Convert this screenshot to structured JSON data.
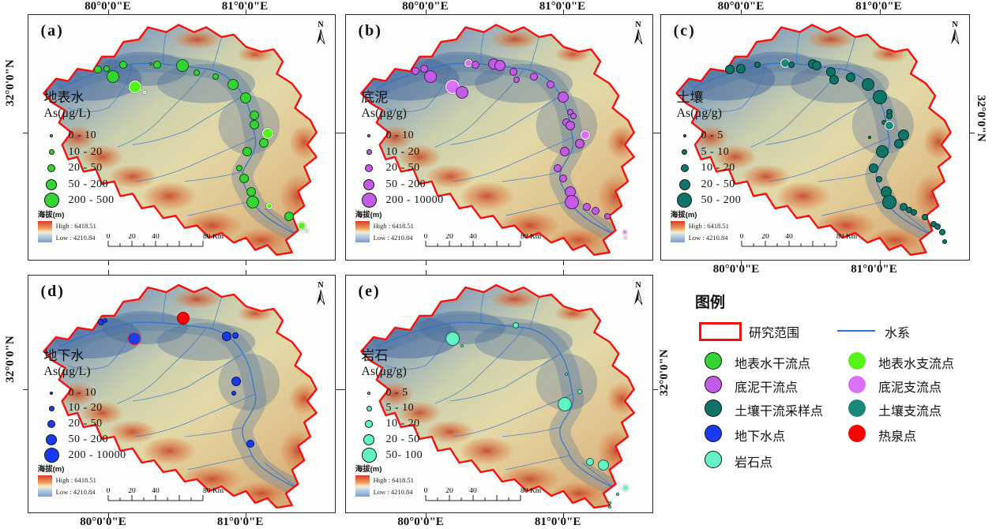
{
  "figure": {
    "north": "N",
    "elevation": {
      "label": "海拔(m)",
      "high": "High : 6418.51",
      "low": "Low : 4210.84"
    },
    "scalebar": {
      "ticks": [
        "0",
        "20",
        "40",
        "80 Km"
      ]
    },
    "colors": {
      "study_area_outline": "#f50f0f",
      "river": "#2f74d0",
      "surface_water_main": "#35d435",
      "surface_water_trib": "#55f318",
      "sediment_main": "#c45be6",
      "sediment_trib": "#da70f8",
      "soil_main": "#0f7569",
      "soil_trib": "#1a877b",
      "groundwater": "#1a3af0",
      "rock": "#63f2c5",
      "hot_spring": "#ff0000"
    },
    "panels": [
      {
        "id": "a",
        "letter": "(a)",
        "title": "地表水",
        "unit": "As(μg/L)",
        "classes": [
          "0 - 10",
          "10 - 20",
          "20 - 50",
          "50 - 200",
          "200 - 500"
        ],
        "color": "#35d435",
        "trib_color": "#55f318",
        "axis": {
          "top": [
            "80°0'0\"E",
            "81°0'0\"E"
          ],
          "left": "32°0'0\"N"
        },
        "points": [
          [
            22.6,
            22.4,
            5,
            0
          ],
          [
            25.6,
            21.8,
            4,
            0
          ],
          [
            31.0,
            20.2,
            5,
            0
          ],
          [
            40.0,
            19.9,
            2,
            0
          ],
          [
            42.1,
            20.2,
            5,
            0
          ],
          [
            50.3,
            20.5,
            8,
            0
          ],
          [
            54.9,
            23.4,
            4,
            0
          ],
          [
            27.7,
            25.3,
            8,
            0
          ],
          [
            34.9,
            29.5,
            8,
            1
          ],
          [
            37.9,
            31.7,
            2,
            1
          ],
          [
            61.0,
            25.0,
            4,
            0
          ],
          [
            66.7,
            28.5,
            7,
            0
          ],
          [
            70.8,
            34.0,
            7,
            0
          ],
          [
            73.6,
            41.0,
            6,
            0
          ],
          [
            73.8,
            44.9,
            6,
            0
          ],
          [
            78.2,
            48.4,
            7,
            1
          ],
          [
            76.7,
            52.2,
            6,
            0
          ],
          [
            71.3,
            55.8,
            6,
            0
          ],
          [
            68.7,
            62.5,
            4,
            0
          ],
          [
            70.3,
            66.7,
            6,
            0
          ],
          [
            72.8,
            72.4,
            6,
            0
          ],
          [
            73.3,
            76.6,
            8,
            0
          ],
          [
            78.7,
            78.2,
            4,
            1
          ],
          [
            85.1,
            82.4,
            6,
            0
          ],
          [
            89.2,
            86.2,
            5,
            1
          ],
          [
            90.8,
            88.1,
            2,
            1
          ]
        ]
      },
      {
        "id": "b",
        "letter": "(b)",
        "title": "底泥",
        "unit": "As(μg/g)",
        "classes": [
          "0 - 10",
          "10 - 20",
          "20 - 50",
          "50 - 200",
          "200 - 10000"
        ],
        "color": "#c45be6",
        "trib_color": "#da70f8",
        "axis": {
          "top": [
            "80°0'0\"E",
            "81°0'0\"E"
          ]
        },
        "points": [
          [
            22.6,
            22.8,
            5,
            0
          ],
          [
            25.6,
            21.8,
            5,
            0
          ],
          [
            27.7,
            25.3,
            8,
            0
          ],
          [
            34.9,
            29.5,
            9,
            1
          ],
          [
            37.9,
            31.7,
            8,
            0
          ],
          [
            40.0,
            19.6,
            5,
            1
          ],
          [
            42.3,
            20.2,
            5,
            0
          ],
          [
            48.2,
            19.9,
            7,
            0
          ],
          [
            50.3,
            20.5,
            7,
            0
          ],
          [
            54.6,
            23.1,
            5,
            0
          ],
          [
            55.6,
            26.3,
            4,
            0
          ],
          [
            61.3,
            25.3,
            5,
            0
          ],
          [
            66.7,
            28.5,
            5,
            0
          ],
          [
            70.8,
            33.7,
            7,
            0
          ],
          [
            73.3,
            39.7,
            4,
            0
          ],
          [
            74.1,
            41.3,
            4,
            0
          ],
          [
            71.8,
            43.9,
            5,
            0
          ],
          [
            73.3,
            45.2,
            6,
            0
          ],
          [
            78.2,
            49.0,
            6,
            1
          ],
          [
            76.4,
            52.6,
            6,
            0
          ],
          [
            71.3,
            55.8,
            6,
            0
          ],
          [
            69.0,
            62.5,
            5,
            0
          ],
          [
            70.8,
            66.7,
            5,
            0
          ],
          [
            73.1,
            72.4,
            7,
            0
          ],
          [
            73.8,
            76.6,
            9,
            0
          ],
          [
            78.5,
            78.5,
            5,
            0
          ],
          [
            81.5,
            80.1,
            5,
            0
          ],
          [
            85.4,
            82.4,
            4,
            0
          ],
          [
            91.0,
            88.8,
            3,
            1
          ],
          [
            91.3,
            91.0,
            2,
            1
          ]
        ]
      },
      {
        "id": "c",
        "letter": "(c)",
        "title": "土壤",
        "unit": "As(μg/g)",
        "classes": [
          "0 - 5",
          "5 - 10",
          "10 - 20",
          "20 - 50",
          "50 - 200"
        ],
        "color": "#0f7569",
        "trib_color": "#1a877b",
        "axis": {
          "top": [
            "80°0'0\"E",
            "81°0'0\"E"
          ],
          "bottom": [
            "80°0'0\"E",
            "81°0'0\"E"
          ],
          "right": "32°0'0\"N"
        },
        "points": [
          [
            22.4,
            22.1,
            6,
            0
          ],
          [
            25.8,
            21.8,
            6,
            0
          ],
          [
            31.4,
            20.2,
            4,
            0
          ],
          [
            40.3,
            19.6,
            6,
            1
          ],
          [
            42.3,
            20.2,
            4,
            0
          ],
          [
            49.2,
            19.9,
            6,
            0
          ],
          [
            50.5,
            20.5,
            6,
            0
          ],
          [
            55.1,
            23.1,
            6,
            0
          ],
          [
            56.1,
            26.3,
            6,
            0
          ],
          [
            61.5,
            25.6,
            6,
            0
          ],
          [
            67.1,
            28.5,
            8,
            0
          ],
          [
            70.9,
            33.7,
            9,
            0
          ],
          [
            74.0,
            39.7,
            4,
            0
          ],
          [
            74.2,
            41.3,
            4,
            0
          ],
          [
            72.2,
            43.9,
            3,
            0
          ],
          [
            74.0,
            45.2,
            6,
            1
          ],
          [
            78.6,
            49.0,
            7,
            0
          ],
          [
            77.3,
            52.6,
            6,
            0
          ],
          [
            67.6,
            50.0,
            2,
            0
          ],
          [
            71.9,
            55.8,
            8,
            0
          ],
          [
            68.9,
            62.5,
            6,
            0
          ],
          [
            70.7,
            67.0,
            4,
            0
          ],
          [
            73.2,
            72.4,
            7,
            0
          ],
          [
            74.0,
            76.6,
            9,
            0
          ],
          [
            78.6,
            78.5,
            5,
            0
          ],
          [
            80.4,
            79.8,
            4,
            0
          ],
          [
            82.1,
            80.8,
            4,
            0
          ],
          [
            85.7,
            82.7,
            4,
            0
          ],
          [
            88.5,
            85.6,
            4,
            0
          ],
          [
            89.8,
            86.5,
            4,
            0
          ],
          [
            91.3,
            88.8,
            4,
            0
          ],
          [
            92.1,
            92.6,
            3,
            0
          ]
        ]
      },
      {
        "id": "d",
        "letter": "(d)",
        "title": "地下水",
        "unit": "As(μg/L)",
        "classes": [
          "0 - 10",
          "10 - 20",
          "20 - 50",
          "50 - 200",
          "200 - 10000"
        ],
        "color": "#1a3af0",
        "trib_color": "#1a3af0",
        "axis": {
          "bottom": [
            "80°0'0\"E",
            "81°0'0\"E"
          ],
          "left": "32°0'0\"N"
        },
        "points": [
          [
            23.8,
            19.5,
            4,
            0
          ],
          [
            24.9,
            19.0,
            3,
            0
          ],
          [
            50.5,
            17.9,
            8,
            2
          ],
          [
            34.6,
            26.5,
            8,
            3
          ],
          [
            64.6,
            25.8,
            6,
            0
          ],
          [
            67.4,
            25.2,
            4,
            0
          ],
          [
            67.9,
            44.7,
            6,
            0
          ],
          [
            66.9,
            49.7,
            3,
            0
          ],
          [
            72.3,
            70.9,
            5,
            0
          ]
        ]
      },
      {
        "id": "e",
        "letter": "(e)",
        "title": "岩石",
        "unit": "As(μg/g)",
        "classes": [
          "0 - 5",
          "5 - 10",
          "10 - 20",
          "20 - 50",
          "50- 100"
        ],
        "color": "#63f2c5",
        "trib_color": "#63f2c5",
        "axis": {
          "bottom": [
            "80°0'0\"E",
            "81°0'0\"E"
          ],
          "right": "32°0'0\"N"
        },
        "points": [
          [
            55.4,
            20.9,
            4,
            0
          ],
          [
            34.9,
            26.8,
            9,
            0
          ],
          [
            37.9,
            29.5,
            2,
            0
          ],
          [
            71.8,
            41.7,
            2,
            0
          ],
          [
            76.4,
            49.0,
            3,
            0
          ],
          [
            71.3,
            54.3,
            9,
            0
          ],
          [
            79.7,
            78.5,
            5,
            0
          ],
          [
            84.1,
            80.1,
            7,
            0
          ],
          [
            91.3,
            89.7,
            4,
            1
          ],
          [
            88.7,
            92.4,
            2,
            0
          ],
          [
            86.2,
            96.0,
            2,
            0
          ],
          [
            86.2,
            97.7,
            2,
            0
          ]
        ]
      }
    ],
    "legend": {
      "title": "图例",
      "study_area": "研究范围",
      "river": "水系",
      "items_left": [
        {
          "label": "地表水干流点",
          "color": "#35d435"
        },
        {
          "label": "底泥干流点",
          "color": "#c45be6"
        },
        {
          "label": "土壤干流采样点",
          "color": "#0f7569"
        },
        {
          "label": "地下水点",
          "color": "#1a3af0"
        },
        {
          "label": "岩石点",
          "color": "#63f2c5"
        }
      ],
      "items_right": [
        {
          "label": "地表水支流点",
          "color": "#55f318"
        },
        {
          "label": "底泥支流点",
          "color": "#da70f8"
        },
        {
          "label": "土壤支流点",
          "color": "#1a877b"
        },
        {
          "label": "热泉点",
          "color": "#ff0000"
        }
      ]
    }
  }
}
